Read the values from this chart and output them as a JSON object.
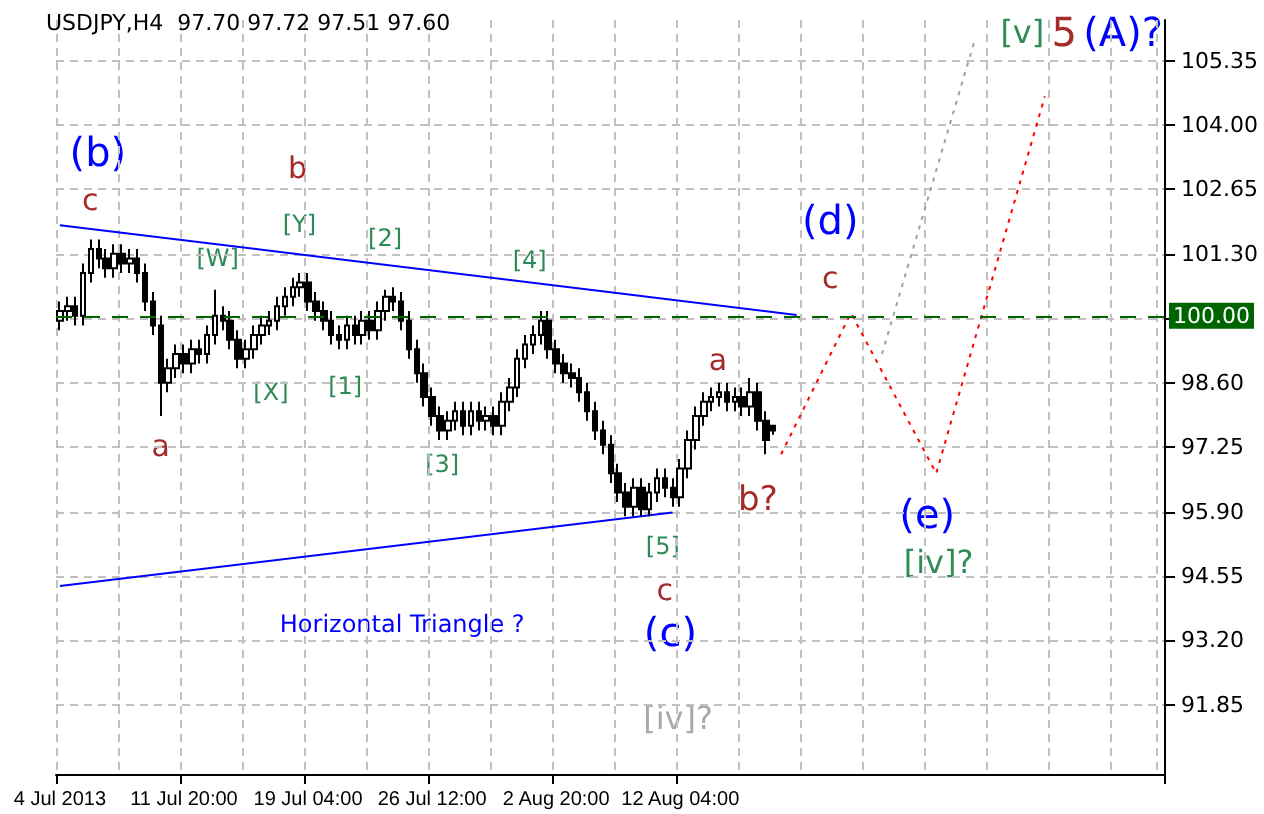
{
  "chart_data": {
    "type": "candlestick",
    "title": "USDJPY,H4  97.70 97.72 97.51 97.60",
    "categories": [
      "4 Jul 2013",
      null,
      null,
      null,
      null,
      null,
      null,
      null,
      null,
      null,
      null,
      null,
      null,
      null,
      null,
      null,
      "11 Jul 20:00",
      null,
      null,
      null,
      null,
      null,
      null,
      null,
      null,
      null,
      null,
      null,
      null,
      null,
      null,
      null,
      "19 Jul 04:00",
      null,
      null,
      null,
      null,
      null,
      null,
      null,
      null,
      null,
      null,
      null,
      null,
      null,
      null,
      null,
      "26 Jul 12:00",
      null,
      null,
      null,
      null,
      null,
      null,
      null,
      null,
      null,
      null,
      null,
      null,
      null,
      null,
      null,
      "2 Aug 20:00",
      null,
      null,
      null,
      null,
      null,
      null,
      null,
      null,
      null,
      null,
      null,
      null,
      null,
      null,
      null,
      "12 Aug 04:00",
      null,
      null,
      null,
      null,
      null,
      null,
      null,
      null,
      null,
      null,
      null,
      null,
      null,
      null,
      null,
      null,
      null,
      null,
      null,
      null,
      null,
      null,
      null,
      null,
      null,
      null,
      null,
      null,
      null,
      null,
      null,
      null,
      null,
      null,
      null,
      null,
      null,
      null,
      null,
      null,
      null,
      null,
      null,
      null,
      null,
      null,
      null,
      null,
      null,
      null,
      null,
      null,
      null,
      null,
      null,
      null,
      null,
      null,
      null,
      null,
      null,
      null
    ],
    "color": "#000000",
    "ohlc": [
      [
        99.9,
        100.3,
        99.7,
        100.1
      ],
      [
        100.1,
        100.4,
        99.9,
        100.2
      ],
      [
        100.2,
        100.4,
        99.8,
        100.0
      ],
      [
        100.0,
        101.1,
        99.8,
        100.9
      ],
      [
        100.9,
        101.6,
        100.7,
        101.4
      ],
      [
        101.4,
        101.6,
        101.0,
        101.2
      ],
      [
        101.2,
        101.4,
        100.8,
        101.0
      ],
      [
        101.0,
        101.5,
        100.8,
        101.3
      ],
      [
        101.3,
        101.5,
        100.9,
        101.1
      ],
      [
        101.1,
        101.4,
        100.9,
        101.2
      ],
      [
        101.2,
        101.4,
        100.7,
        100.9
      ],
      [
        100.9,
        101.1,
        100.1,
        100.3
      ],
      [
        100.3,
        100.5,
        99.6,
        99.8
      ],
      [
        99.8,
        100.0,
        97.9,
        98.6
      ],
      [
        98.6,
        99.1,
        98.4,
        98.9
      ],
      [
        98.9,
        99.4,
        98.7,
        99.2
      ],
      [
        99.2,
        99.4,
        98.8,
        99.0
      ],
      [
        99.0,
        99.5,
        98.8,
        99.3
      ],
      [
        99.3,
        99.5,
        99.0,
        99.2
      ],
      [
        99.2,
        99.8,
        99.0,
        99.6
      ],
      [
        99.6,
        100.55,
        99.4,
        100.0
      ],
      [
        100.0,
        100.2,
        99.7,
        99.9
      ],
      [
        99.9,
        100.1,
        99.3,
        99.5
      ],
      [
        99.5,
        99.7,
        98.9,
        99.1
      ],
      [
        99.1,
        99.5,
        98.9,
        99.3
      ],
      [
        99.3,
        99.8,
        99.1,
        99.6
      ],
      [
        99.6,
        100.0,
        99.4,
        99.8
      ],
      [
        99.8,
        100.1,
        99.6,
        99.9
      ],
      [
        99.9,
        100.4,
        99.7,
        100.2
      ],
      [
        100.2,
        100.6,
        100.0,
        100.4
      ],
      [
        100.4,
        100.8,
        100.2,
        100.6
      ],
      [
        100.6,
        100.9,
        100.4,
        100.7
      ],
      [
        100.7,
        100.9,
        100.1,
        100.3
      ],
      [
        100.3,
        100.5,
        99.9,
        100.1
      ],
      [
        100.1,
        100.3,
        99.7,
        99.9
      ],
      [
        99.9,
        100.1,
        99.4,
        99.6
      ],
      [
        99.6,
        99.8,
        99.3,
        99.5
      ],
      [
        99.5,
        100.0,
        99.3,
        99.8
      ],
      [
        99.8,
        100.0,
        99.4,
        99.6
      ],
      [
        99.6,
        100.1,
        99.4,
        99.9
      ],
      [
        99.9,
        100.1,
        99.5,
        99.7
      ],
      [
        99.7,
        100.3,
        99.5,
        100.1
      ],
      [
        100.1,
        100.55,
        99.9,
        100.4
      ],
      [
        100.4,
        100.6,
        100.1,
        100.3
      ],
      [
        100.3,
        100.5,
        99.7,
        99.9
      ],
      [
        99.9,
        100.1,
        99.1,
        99.3
      ],
      [
        99.3,
        99.5,
        98.6,
        98.8
      ],
      [
        98.8,
        99.0,
        98.1,
        98.3
      ],
      [
        98.3,
        98.5,
        97.7,
        97.9
      ],
      [
        97.9,
        98.1,
        97.4,
        97.6
      ],
      [
        97.6,
        98.0,
        97.4,
        97.8
      ],
      [
        97.8,
        98.2,
        97.6,
        98.0
      ],
      [
        98.0,
        98.2,
        97.5,
        97.7
      ],
      [
        97.7,
        98.2,
        97.5,
        98.0
      ],
      [
        98.0,
        98.2,
        97.6,
        97.8
      ],
      [
        97.8,
        98.1,
        97.6,
        97.9
      ],
      [
        97.9,
        98.1,
        97.5,
        97.7
      ],
      [
        97.7,
        98.4,
        97.5,
        98.2
      ],
      [
        98.2,
        98.7,
        98.0,
        98.5
      ],
      [
        98.5,
        99.3,
        98.3,
        99.1
      ],
      [
        99.1,
        99.6,
        98.9,
        99.4
      ],
      [
        99.4,
        99.8,
        99.2,
        99.6
      ],
      [
        99.6,
        100.1,
        99.4,
        99.9
      ],
      [
        99.9,
        100.1,
        99.1,
        99.3
      ],
      [
        99.3,
        99.5,
        98.8,
        99.0
      ],
      [
        99.0,
        99.2,
        98.6,
        98.8
      ],
      [
        98.8,
        99.0,
        98.5,
        98.7
      ],
      [
        98.7,
        98.9,
        98.2,
        98.4
      ],
      [
        98.4,
        98.6,
        97.8,
        98.0
      ],
      [
        98.0,
        98.2,
        97.4,
        97.6
      ],
      [
        97.6,
        97.8,
        97.1,
        97.3
      ],
      [
        97.3,
        97.5,
        96.5,
        96.7
      ],
      [
        96.7,
        96.9,
        96.1,
        96.3
      ],
      [
        96.3,
        96.5,
        95.8,
        96.0
      ],
      [
        96.0,
        96.6,
        95.8,
        96.4
      ],
      [
        96.4,
        96.6,
        95.8,
        95.95
      ],
      [
        95.95,
        96.5,
        95.8,
        96.3
      ],
      [
        96.3,
        96.8,
        96.1,
        96.6
      ],
      [
        96.6,
        96.8,
        96.2,
        96.4
      ],
      [
        96.4,
        96.6,
        96.0,
        96.2
      ],
      [
        96.2,
        97.0,
        96.0,
        96.8
      ],
      [
        96.8,
        97.6,
        96.6,
        97.4
      ],
      [
        97.4,
        98.1,
        97.2,
        97.9
      ],
      [
        97.9,
        98.4,
        97.7,
        98.2
      ],
      [
        98.2,
        98.5,
        98.0,
        98.3
      ],
      [
        98.3,
        98.6,
        98.1,
        98.4
      ],
      [
        98.4,
        98.6,
        98.0,
        98.2
      ],
      [
        98.2,
        98.5,
        98.0,
        98.3
      ],
      [
        98.3,
        98.5,
        97.9,
        98.1
      ],
      [
        98.1,
        98.7,
        97.9,
        98.4
      ],
      [
        98.4,
        98.6,
        97.6,
        97.8
      ],
      [
        97.8,
        98.0,
        97.1,
        97.4
      ],
      [
        97.7,
        97.72,
        97.51,
        97.6
      ],
      null,
      null,
      null,
      null,
      null,
      null,
      null,
      null,
      null,
      null,
      null,
      null,
      null,
      null,
      null,
      null,
      null,
      null,
      null,
      null,
      null,
      null,
      null,
      null,
      null,
      null,
      null,
      null,
      null,
      null,
      null,
      null,
      null,
      null,
      null,
      null,
      null,
      null,
      null,
      null,
      null,
      null,
      null,
      null,
      null,
      null,
      null,
      null,
      null,
      null
    ],
    "series": [
      {
        "type": "line",
        "color": "#0000ff",
        "line_style": "solid",
        "values": [
          101.9,
          null,
          null,
          null,
          null,
          null,
          null,
          null,
          null,
          null,
          null,
          null,
          null,
          null,
          null,
          null,
          null,
          null,
          null,
          null,
          null,
          null,
          null,
          null,
          null,
          null,
          null,
          null,
          null,
          null,
          null,
          null,
          null,
          null,
          null,
          null,
          null,
          null,
          null,
          null,
          null,
          null,
          null,
          null,
          null,
          null,
          null,
          null,
          null,
          null,
          null,
          null,
          null,
          null,
          null,
          null,
          null,
          null,
          null,
          null,
          null,
          null,
          null,
          null,
          null,
          null,
          null,
          null,
          null,
          null,
          null,
          null,
          null,
          null,
          null,
          null,
          null,
          null,
          null,
          null,
          null,
          null,
          null,
          null,
          null,
          null,
          null,
          null,
          null,
          null,
          null,
          null,
          null,
          null,
          null,
          100.02,
          null,
          null,
          null,
          null,
          null,
          null,
          null,
          null,
          null,
          null,
          null,
          null,
          null,
          null,
          null,
          null,
          null,
          null,
          null,
          null,
          null,
          null,
          null,
          null,
          null,
          null,
          null,
          null,
          null,
          null,
          null,
          null,
          null,
          null,
          null,
          null,
          null,
          null,
          null,
          null,
          null,
          null,
          null,
          null,
          null,
          null,
          null
        ]
      },
      {
        "type": "line",
        "color": "#0000ff",
        "line_style": "solid",
        "values": [
          94.34,
          null,
          null,
          null,
          null,
          null,
          null,
          null,
          null,
          null,
          null,
          null,
          null,
          null,
          null,
          null,
          null,
          null,
          null,
          null,
          null,
          null,
          null,
          null,
          null,
          null,
          null,
          null,
          null,
          null,
          null,
          null,
          null,
          null,
          null,
          null,
          null,
          null,
          null,
          null,
          null,
          null,
          null,
          null,
          null,
          null,
          null,
          null,
          null,
          null,
          null,
          null,
          null,
          null,
          null,
          null,
          null,
          null,
          null,
          null,
          null,
          null,
          null,
          null,
          null,
          null,
          null,
          null,
          null,
          null,
          null,
          null,
          null,
          null,
          null,
          null,
          null,
          null,
          null,
          95.88,
          null,
          null,
          null,
          null,
          null,
          null,
          null,
          null,
          null,
          null,
          null,
          null,
          null,
          null,
          null,
          null,
          null,
          null,
          null,
          null,
          null,
          null,
          null,
          null,
          null,
          null,
          null,
          null,
          null,
          null,
          null,
          null,
          null,
          null,
          null,
          null,
          null,
          null,
          null,
          null,
          null,
          null,
          null,
          null,
          null,
          null,
          null,
          null,
          null,
          null,
          null,
          null,
          null,
          null,
          null,
          null,
          null,
          null,
          null,
          null,
          null,
          null,
          null
        ]
      },
      {
        "type": "line",
        "color": "#ff0000",
        "line_style": "dotted",
        "values": [
          null,
          null,
          null,
          null,
          null,
          null,
          null,
          null,
          null,
          null,
          null,
          null,
          null,
          null,
          null,
          null,
          null,
          null,
          null,
          null,
          null,
          null,
          null,
          null,
          null,
          null,
          null,
          null,
          null,
          null,
          null,
          null,
          null,
          null,
          null,
          null,
          null,
          null,
          null,
          null,
          null,
          null,
          null,
          null,
          null,
          null,
          null,
          null,
          null,
          null,
          null,
          null,
          null,
          null,
          null,
          null,
          null,
          null,
          null,
          null,
          null,
          null,
          null,
          null,
          null,
          null,
          null,
          null,
          null,
          null,
          null,
          null,
          null,
          null,
          null,
          null,
          null,
          null,
          null,
          null,
          null,
          null,
          null,
          null,
          null,
          null,
          null,
          null,
          null,
          null,
          null,
          null,
          null,
          97.1,
          null,
          null,
          null,
          null,
          null,
          null,
          null,
          null,
          100.06,
          null,
          null,
          null,
          null,
          null,
          null,
          null,
          null,
          null,
          null,
          96.7,
          null,
          null,
          null,
          null,
          null,
          null,
          null,
          null,
          null,
          null,
          null,
          null,
          null,
          104.6,
          null,
          null,
          null,
          null,
          null,
          null,
          null,
          null,
          null,
          null,
          null,
          null,
          null,
          null,
          null
        ]
      },
      {
        "type": "line",
        "color": "#a0a0a0",
        "line_style": "dotted",
        "values": [
          null,
          null,
          null,
          null,
          null,
          null,
          null,
          null,
          null,
          null,
          null,
          null,
          null,
          null,
          null,
          null,
          null,
          null,
          null,
          null,
          null,
          null,
          null,
          null,
          null,
          null,
          null,
          null,
          null,
          null,
          null,
          null,
          null,
          null,
          null,
          null,
          null,
          null,
          null,
          null,
          null,
          null,
          null,
          null,
          null,
          null,
          null,
          null,
          null,
          null,
          null,
          null,
          null,
          null,
          null,
          null,
          null,
          null,
          null,
          null,
          null,
          null,
          null,
          null,
          null,
          null,
          null,
          null,
          null,
          null,
          null,
          null,
          null,
          null,
          null,
          null,
          null,
          null,
          null,
          null,
          null,
          null,
          null,
          null,
          null,
          null,
          null,
          null,
          null,
          null,
          null,
          null,
          null,
          null,
          null,
          null,
          null,
          null,
          null,
          null,
          null,
          null,
          null,
          null,
          null,
          null,
          99.2,
          null,
          null,
          null,
          null,
          null,
          null,
          null,
          null,
          null,
          null,
          null,
          105.8,
          null,
          null,
          null,
          null,
          null,
          null,
          null,
          null,
          null,
          null,
          null,
          null,
          null,
          null,
          null,
          null,
          null,
          null,
          null,
          null,
          null,
          null,
          null,
          null
        ]
      }
    ],
    "ylim": [
      90.4,
      106.2
    ],
    "yticks": [
      91.85,
      {
        "value": 93.2,
        "label": "93.20"
      },
      94.55,
      {
        "value": 95.9,
        "label": "95.90"
      },
      97.25,
      {
        "value": 98.6,
        "label": "98.60"
      },
      {
        "value": 99.95,
        "label": null
      },
      {
        "value": 101.3,
        "label": "101.30"
      },
      102.65,
      {
        "value": 104.0,
        "label": "104.00"
      },
      105.35
    ],
    "ref_lines": [
      {
        "axis": "y",
        "value": 100.0,
        "label": "100.00",
        "color": "#006400",
        "line_style": "dashed"
      }
    ],
    "annotations": [
      "(b)",
      "c",
      "b",
      "[Y]",
      "[W]",
      "[2]",
      "[4]",
      "[X]",
      "[1]",
      "a",
      "[3]",
      "Horizontal Triangle ?",
      "[5]",
      "c",
      "(c)",
      "[iv]?",
      "a",
      "b?",
      "(d)",
      "c",
      "(e)",
      "[iv]?",
      "[v]",
      "5",
      "(A)?"
    ],
    "grid": true,
    "marker": "none"
  }
}
